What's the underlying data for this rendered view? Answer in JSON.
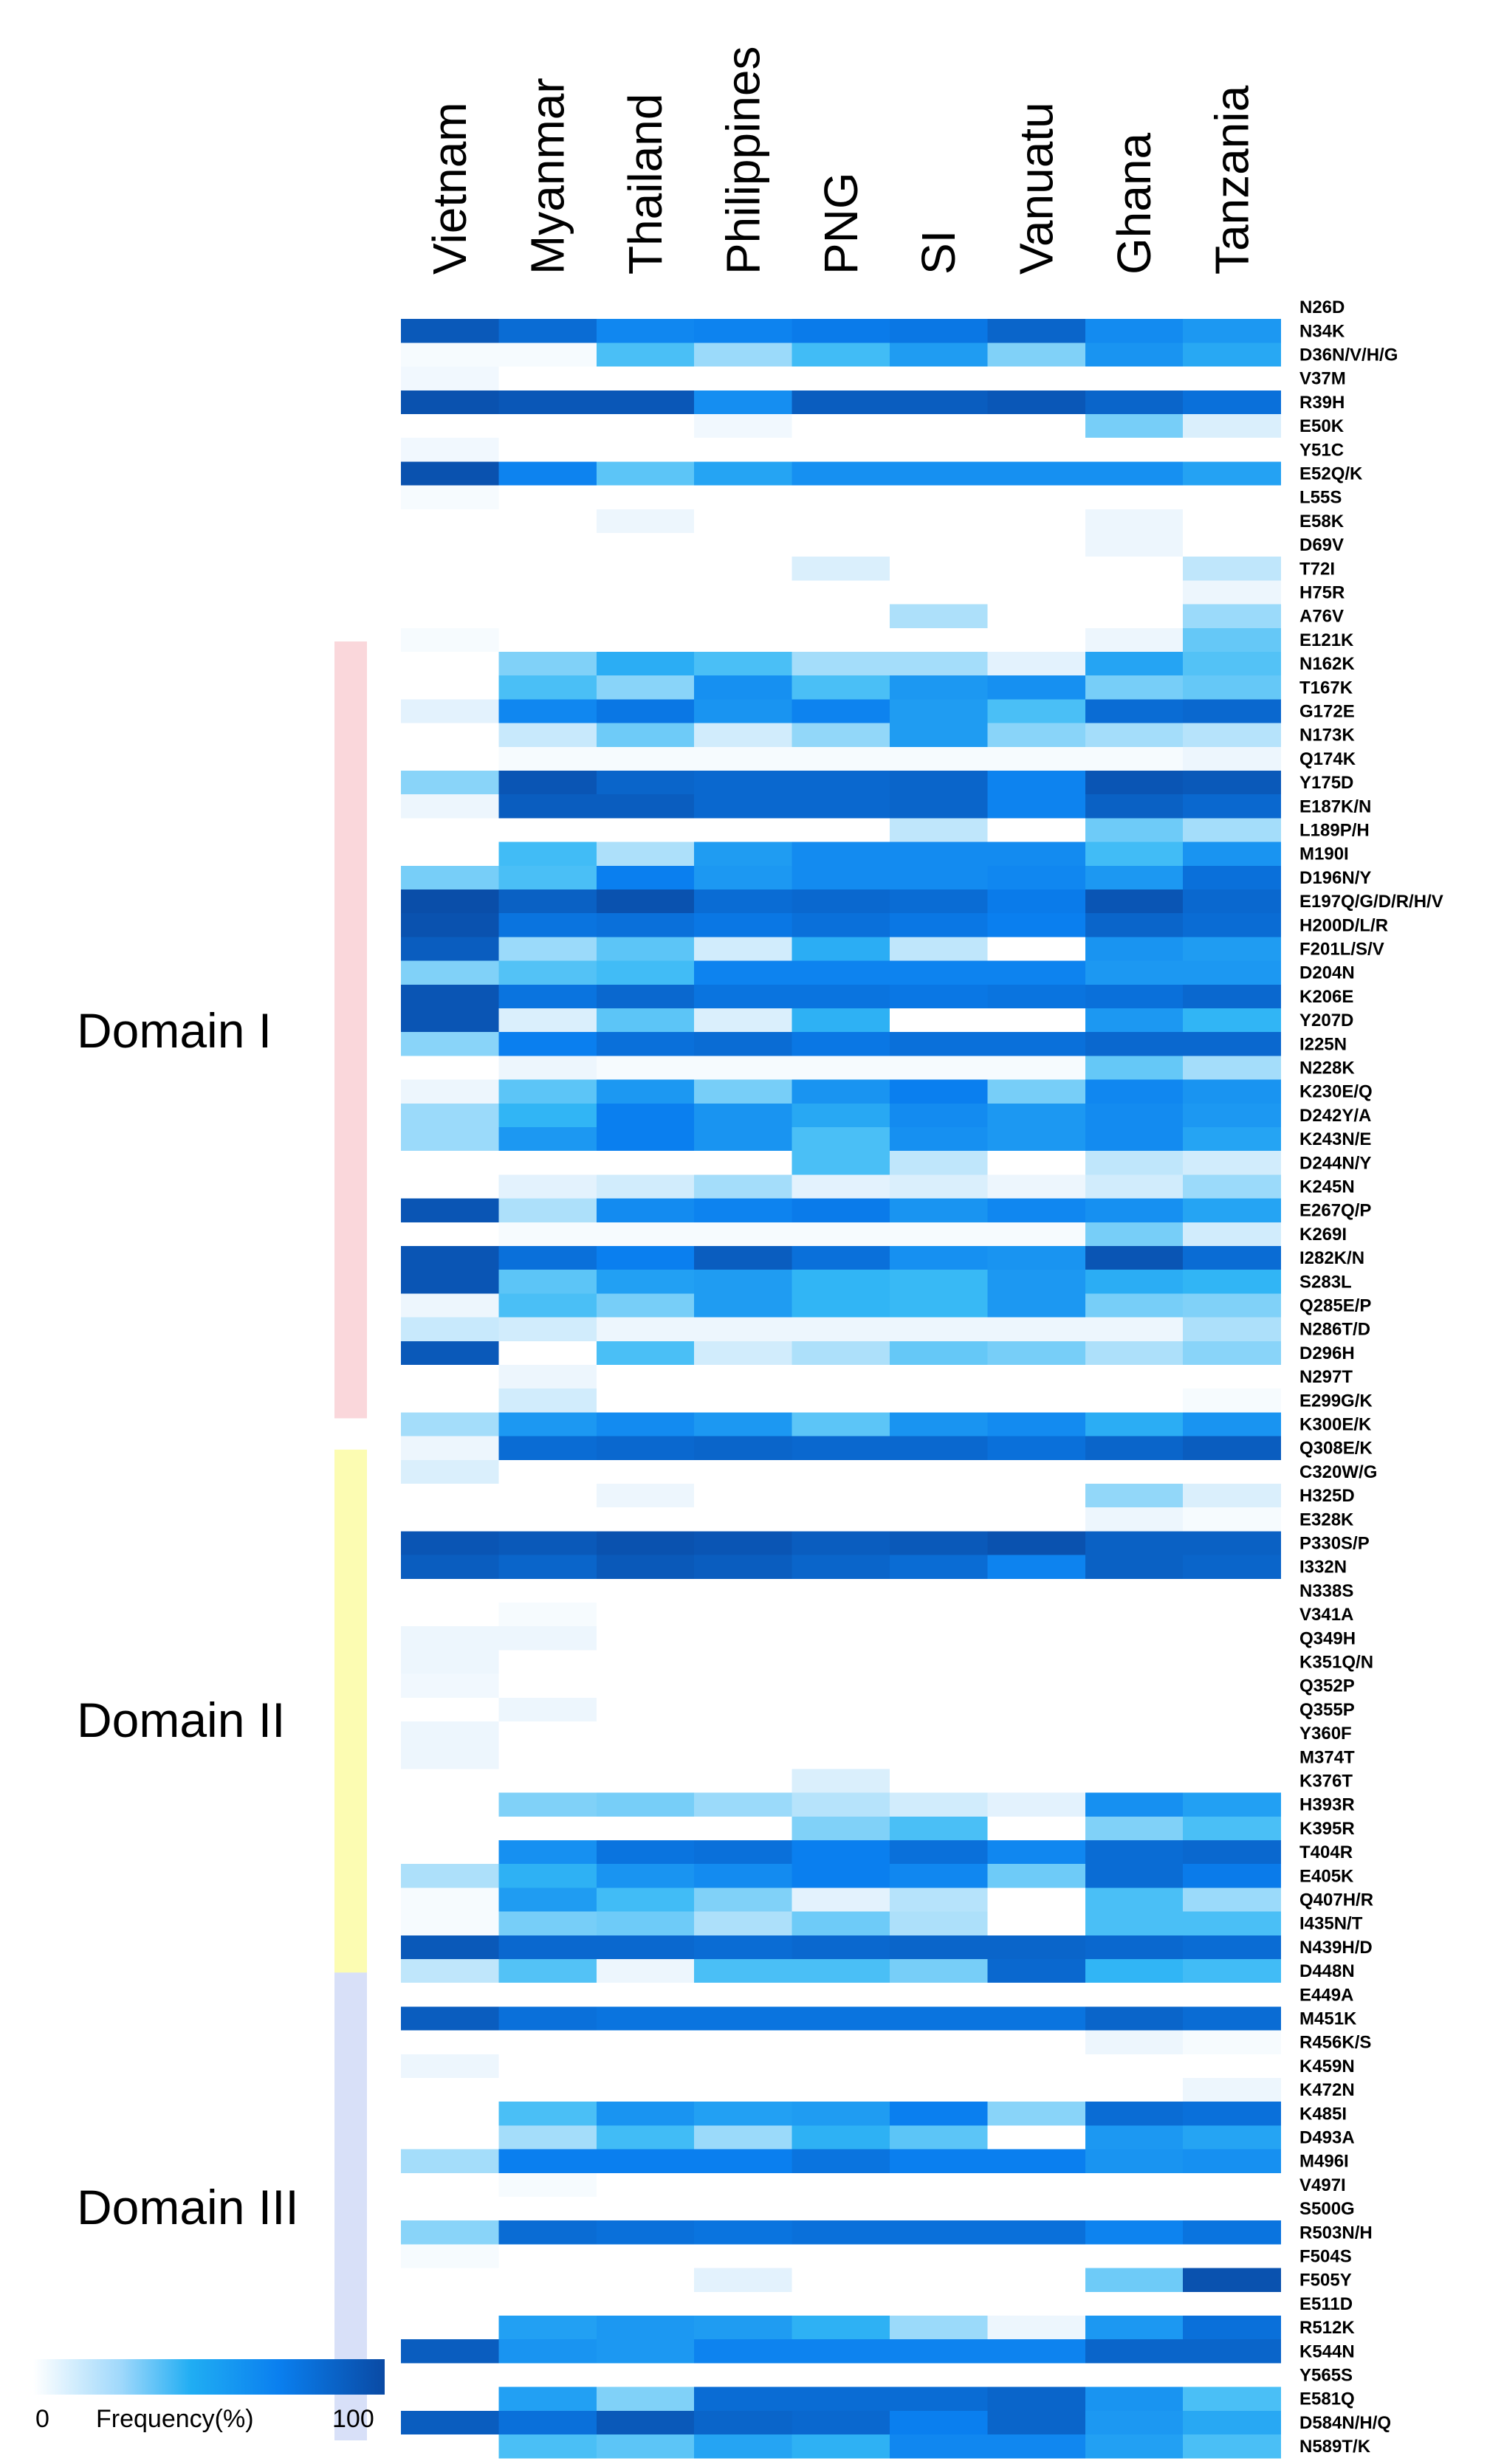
{
  "chart_data": {
    "type": "heatmap",
    "columns": [
      "Vietnam",
      "Myanmar",
      "Thailand",
      "Philippines",
      "PNG",
      "SI",
      "Vanuatu",
      "Ghana",
      "Tanzania"
    ],
    "rows": [
      "N26D",
      "N34K",
      "D36N/V/H/G",
      "V37M",
      "R39H",
      "E50K",
      "Y51C",
      "E52Q/K",
      "L55S",
      "E58K",
      "D69V",
      "T72I",
      "H75R",
      "A76V",
      "E121K",
      "N162K",
      "T167K",
      "G172E",
      "N173K",
      "Q174K",
      "Y175D",
      "E187K/N",
      "L189P/H",
      "M190I",
      "D196N/Y",
      "E197Q/G/D/R/H/V",
      "H200D/L/R",
      "F201L/S/V",
      "D204N",
      "K206E",
      "Y207D",
      "I225N",
      "N228K",
      "K230E/Q",
      "D242Y/A",
      "K243N/E",
      "D244N/Y",
      "K245N",
      "E267Q/P",
      "K269I",
      "I282K/N",
      "S283L",
      "Q285E/P",
      "N286T/D",
      "D296H",
      "N297T",
      "E299G/K",
      "K300E/K",
      "Q308E/K",
      "C320W/G",
      "H325D",
      "E328K",
      "P330S/P",
      "I332N",
      "N338S",
      "V341A",
      "Q349H",
      "K351Q/N",
      "Q352P",
      "Q355P",
      "Y360F",
      "M374T",
      "K376T",
      "H393R",
      "K395R",
      "T404R",
      "E405K",
      "Q407H/R",
      "I435N/T",
      "N439H/D",
      "D448N",
      "E449A",
      "M451K",
      "R456K/S",
      "K459N",
      "K472N",
      "K485I",
      "D493A",
      "M496I",
      "V497I",
      "S500G",
      "R503N/H",
      "F504S",
      "F505Y",
      "E511D",
      "R512K",
      "K544N",
      "Y565S",
      "E581Q",
      "D584N/H/Q",
      "N589T/K"
    ],
    "values": [
      [
        0,
        0,
        0,
        0,
        0,
        0,
        0,
        0,
        0
      ],
      [
        92,
        82,
        68,
        70,
        74,
        76,
        86,
        66,
        60
      ],
      [
        2,
        2,
        40,
        22,
        42,
        58,
        28,
        62,
        52
      ],
      [
        3,
        0,
        0,
        0,
        0,
        0,
        0,
        0,
        0
      ],
      [
        96,
        93,
        93,
        65,
        90,
        90,
        93,
        86,
        80
      ],
      [
        0,
        0,
        0,
        3,
        0,
        0,
        0,
        30,
        8
      ],
      [
        3,
        0,
        0,
        0,
        0,
        0,
        0,
        0,
        0
      ],
      [
        96,
        70,
        36,
        54,
        64,
        64,
        64,
        64,
        55
      ],
      [
        2,
        0,
        0,
        0,
        0,
        0,
        0,
        0,
        0
      ],
      [
        0,
        0,
        4,
        0,
        0,
        0,
        0,
        4,
        0
      ],
      [
        0,
        0,
        0,
        0,
        0,
        0,
        0,
        4,
        0
      ],
      [
        0,
        0,
        0,
        0,
        8,
        0,
        0,
        0,
        14
      ],
      [
        0,
        0,
        0,
        0,
        0,
        0,
        0,
        0,
        4
      ],
      [
        0,
        0,
        0,
        0,
        0,
        18,
        0,
        0,
        22
      ],
      [
        2,
        0,
        0,
        0,
        0,
        0,
        0,
        4,
        34
      ],
      [
        0,
        28,
        50,
        40,
        20,
        20,
        6,
        54,
        38
      ],
      [
        0,
        40,
        26,
        64,
        40,
        60,
        64,
        30,
        34
      ],
      [
        6,
        68,
        76,
        62,
        70,
        58,
        40,
        82,
        84
      ],
      [
        0,
        12,
        32,
        10,
        24,
        58,
        26,
        20,
        16
      ],
      [
        0,
        2,
        2,
        2,
        2,
        2,
        2,
        2,
        4
      ],
      [
        26,
        94,
        86,
        84,
        84,
        86,
        70,
        94,
        92
      ],
      [
        4,
        90,
        90,
        84,
        84,
        86,
        70,
        88,
        84
      ],
      [
        0,
        0,
        0,
        0,
        0,
        14,
        0,
        32,
        20
      ],
      [
        0,
        42,
        18,
        58,
        66,
        66,
        66,
        42,
        62
      ],
      [
        30,
        40,
        72,
        60,
        66,
        66,
        68,
        60,
        80
      ],
      [
        98,
        88,
        96,
        82,
        84,
        82,
        74,
        94,
        84
      ],
      [
        96,
        78,
        80,
        76,
        80,
        76,
        72,
        86,
        82
      ],
      [
        90,
        22,
        36,
        10,
        50,
        14,
        0,
        62,
        58
      ],
      [
        28,
        38,
        42,
        70,
        70,
        70,
        70,
        60,
        60
      ],
      [
        94,
        78,
        84,
        78,
        78,
        76,
        78,
        80,
        84
      ],
      [
        94,
        8,
        36,
        8,
        48,
        0,
        0,
        60,
        46
      ],
      [
        26,
        72,
        80,
        82,
        76,
        80,
        80,
        84,
        84
      ],
      [
        0,
        4,
        2,
        2,
        2,
        2,
        2,
        34,
        20
      ],
      [
        4,
        36,
        60,
        30,
        62,
        72,
        30,
        68,
        62
      ],
      [
        22,
        46,
        72,
        62,
        52,
        66,
        60,
        66,
        60
      ],
      [
        22,
        60,
        72,
        62,
        40,
        64,
        60,
        66,
        54
      ],
      [
        0,
        0,
        0,
        0,
        40,
        14,
        0,
        14,
        10
      ],
      [
        0,
        6,
        10,
        20,
        6,
        8,
        4,
        10,
        22
      ],
      [
        94,
        18,
        66,
        70,
        74,
        62,
        68,
        64,
        54
      ],
      [
        0,
        2,
        2,
        2,
        2,
        2,
        2,
        30,
        10
      ],
      [
        94,
        80,
        72,
        90,
        80,
        64,
        62,
        94,
        82
      ],
      [
        94,
        36,
        56,
        58,
        46,
        44,
        60,
        50,
        46
      ],
      [
        4,
        40,
        30,
        58,
        46,
        44,
        60,
        30,
        28
      ],
      [
        12,
        10,
        4,
        4,
        4,
        4,
        4,
        4,
        18
      ],
      [
        92,
        0,
        40,
        10,
        18,
        34,
        30,
        18,
        26
      ],
      [
        0,
        4,
        0,
        0,
        0,
        0,
        0,
        0,
        0
      ],
      [
        0,
        10,
        0,
        0,
        0,
        0,
        0,
        0,
        2
      ],
      [
        20,
        60,
        66,
        60,
        36,
        62,
        66,
        50,
        62
      ],
      [
        4,
        82,
        84,
        86,
        84,
        84,
        80,
        86,
        90
      ],
      [
        8,
        0,
        0,
        0,
        0,
        0,
        0,
        0,
        0
      ],
      [
        0,
        0,
        4,
        0,
        0,
        0,
        0,
        24,
        8
      ],
      [
        0,
        0,
        0,
        0,
        0,
        0,
        0,
        4,
        2
      ],
      [
        94,
        92,
        96,
        94,
        90,
        92,
        96,
        88,
        88
      ],
      [
        90,
        86,
        92,
        90,
        86,
        82,
        70,
        88,
        86
      ],
      [
        0,
        0,
        0,
        0,
        0,
        0,
        0,
        0,
        0
      ],
      [
        0,
        2,
        0,
        0,
        0,
        0,
        0,
        0,
        0
      ],
      [
        4,
        4,
        0,
        0,
        0,
        0,
        0,
        0,
        0
      ],
      [
        4,
        0,
        0,
        0,
        0,
        0,
        0,
        0,
        0
      ],
      [
        3,
        0,
        0,
        0,
        0,
        0,
        0,
        0,
        0
      ],
      [
        0,
        4,
        0,
        0,
        0,
        0,
        0,
        0,
        0
      ],
      [
        4,
        0,
        0,
        0,
        0,
        0,
        0,
        0,
        0
      ],
      [
        4,
        0,
        0,
        0,
        0,
        0,
        0,
        0,
        0
      ],
      [
        0,
        0,
        0,
        0,
        8,
        0,
        0,
        0,
        0
      ],
      [
        0,
        28,
        30,
        22,
        16,
        10,
        6,
        64,
        56
      ],
      [
        0,
        0,
        0,
        0,
        28,
        40,
        0,
        28,
        40
      ],
      [
        0,
        64,
        78,
        80,
        72,
        80,
        68,
        82,
        84
      ],
      [
        18,
        48,
        62,
        66,
        72,
        68,
        32,
        82,
        74
      ],
      [
        2,
        58,
        42,
        28,
        6,
        16,
        0,
        40,
        22
      ],
      [
        2,
        30,
        32,
        18,
        32,
        18,
        0,
        40,
        40
      ],
      [
        92,
        84,
        84,
        82,
        84,
        86,
        86,
        84,
        82
      ],
      [
        14,
        38,
        4,
        40,
        40,
        30,
        84,
        46,
        42
      ],
      [
        0,
        0,
        0,
        0,
        0,
        0,
        0,
        0,
        0
      ],
      [
        90,
        80,
        78,
        78,
        78,
        78,
        78,
        86,
        82
      ],
      [
        0,
        0,
        0,
        0,
        0,
        0,
        0,
        4,
        2
      ],
      [
        4,
        0,
        0,
        0,
        0,
        0,
        0,
        0,
        0
      ],
      [
        0,
        0,
        0,
        0,
        0,
        0,
        0,
        0,
        4
      ],
      [
        0,
        40,
        62,
        56,
        58,
        72,
        26,
        82,
        80
      ],
      [
        0,
        20,
        42,
        22,
        48,
        36,
        0,
        60,
        54
      ],
      [
        20,
        72,
        72,
        72,
        78,
        72,
        72,
        62,
        64
      ],
      [
        0,
        2,
        0,
        0,
        0,
        0,
        0,
        0,
        0
      ],
      [
        0,
        0,
        0,
        0,
        0,
        0,
        0,
        0,
        0
      ],
      [
        26,
        82,
        80,
        78,
        80,
        80,
        80,
        70,
        78
      ],
      [
        2,
        0,
        0,
        0,
        0,
        0,
        0,
        0,
        0
      ],
      [
        0,
        0,
        0,
        6,
        0,
        0,
        0,
        32,
        96
      ],
      [
        0,
        0,
        0,
        0,
        0,
        0,
        0,
        0,
        0
      ],
      [
        0,
        56,
        60,
        58,
        48,
        22,
        4,
        60,
        80
      ],
      [
        90,
        62,
        60,
        70,
        70,
        70,
        70,
        86,
        86
      ],
      [
        0,
        0,
        0,
        0,
        0,
        0,
        0,
        0,
        0
      ],
      [
        0,
        56,
        28,
        82,
        82,
        82,
        86,
        62,
        40
      ],
      [
        90,
        80,
        92,
        86,
        84,
        72,
        86,
        60,
        52
      ],
      [
        0,
        40,
        36,
        54,
        48,
        68,
        68,
        56,
        40
      ]
    ],
    "legend": {
      "label": "Frequency(%)",
      "min_label": "0",
      "max_label": "100",
      "min": 0,
      "max": 100
    },
    "domains": [
      {
        "name": "Domain I",
        "start": "N162K",
        "end": "E299G/K",
        "color": "#fad7db"
      },
      {
        "name": "Domain II",
        "start": "C320W/G",
        "end": "D448N",
        "color": "#fcfcb2"
      },
      {
        "name": "Domain III",
        "start": "E449A",
        "end": "D584N/H/Q",
        "color": "#d8e0f8"
      }
    ],
    "colorscale": [
      "#ffffff",
      "#e8f4fd",
      "#33b7f5",
      "#0a7fef",
      "#0a4aa4"
    ]
  }
}
